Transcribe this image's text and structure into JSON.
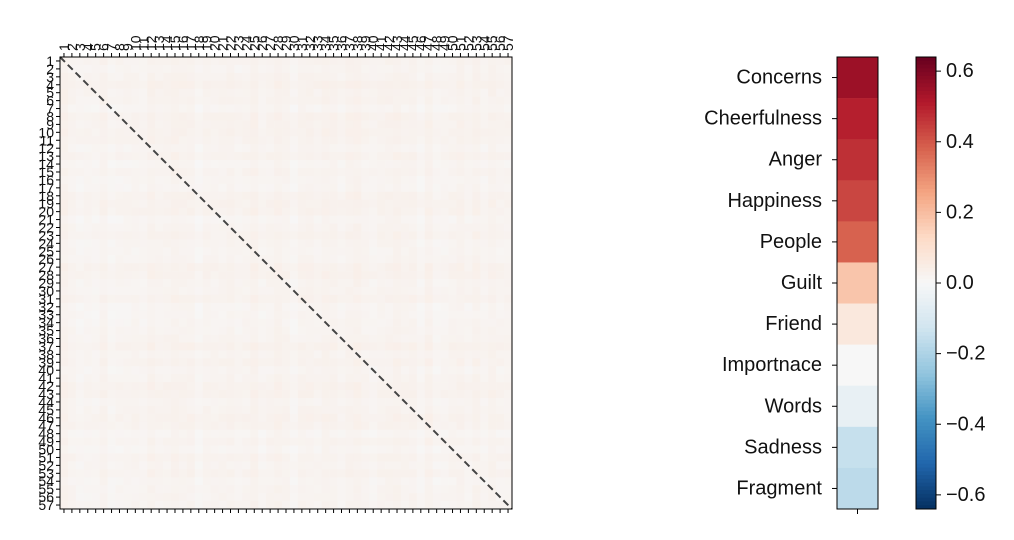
{
  "chart_data": [
    {
      "type": "heatmap",
      "title": "",
      "xlabel": "",
      "ylabel": "",
      "size": 57,
      "x_tick_labels": [
        "1",
        "2",
        "3",
        "4",
        "5",
        "6",
        "7",
        "8",
        "9",
        "10",
        "11",
        "12",
        "13",
        "14",
        "15",
        "16",
        "17",
        "18",
        "19",
        "20",
        "21",
        "22",
        "23",
        "24",
        "25",
        "26",
        "27",
        "28",
        "29",
        "30",
        "31",
        "32",
        "33",
        "34",
        "35",
        "36",
        "37",
        "38",
        "39",
        "40",
        "41",
        "42",
        "43",
        "44",
        "45",
        "46",
        "47",
        "48",
        "49",
        "50",
        "51",
        "52",
        "53",
        "54",
        "55",
        "56",
        "57"
      ],
      "y_tick_labels": [
        "1",
        "2",
        "3",
        "4",
        "5",
        "6",
        "7",
        "8",
        "9",
        "10",
        "11",
        "12",
        "13",
        "14",
        "15",
        "16",
        "17",
        "18",
        "19",
        "20",
        "21",
        "22",
        "23",
        "24",
        "25",
        "26",
        "27",
        "28",
        "29",
        "30",
        "31",
        "32",
        "33",
        "34",
        "35",
        "36",
        "37",
        "38",
        "39",
        "40",
        "41",
        "42",
        "43",
        "44",
        "45",
        "46",
        "47",
        "48",
        "49",
        "50",
        "51",
        "52",
        "53",
        "54",
        "55",
        "56",
        "57"
      ],
      "value_range": [
        0.0,
        0.04
      ],
      "typical_value": 0.02,
      "diagonal_line": "dashed"
    },
    {
      "type": "heatmap",
      "title": "",
      "categories": [
        "Concerns",
        "Cheerfulness",
        "Anger",
        "Happiness",
        "People",
        "Guilt",
        "Friend",
        "Importnace",
        "Words",
        "Sadness",
        "Fragment"
      ],
      "values": [
        0.55,
        0.5,
        0.47,
        0.43,
        0.38,
        0.18,
        0.07,
        0.0,
        -0.05,
        -0.15,
        -0.17
      ]
    }
  ],
  "colorbar": {
    "vmin": -0.64,
    "vmax": 0.64,
    "colormap": "RdBu_r",
    "ticks": [
      "0.6",
      "0.4",
      "0.2",
      "0.0",
      "−0.2",
      "−0.4",
      "−0.6"
    ],
    "tick_values": [
      0.6,
      0.4,
      0.2,
      0.0,
      -0.2,
      -0.4,
      -0.6
    ]
  }
}
